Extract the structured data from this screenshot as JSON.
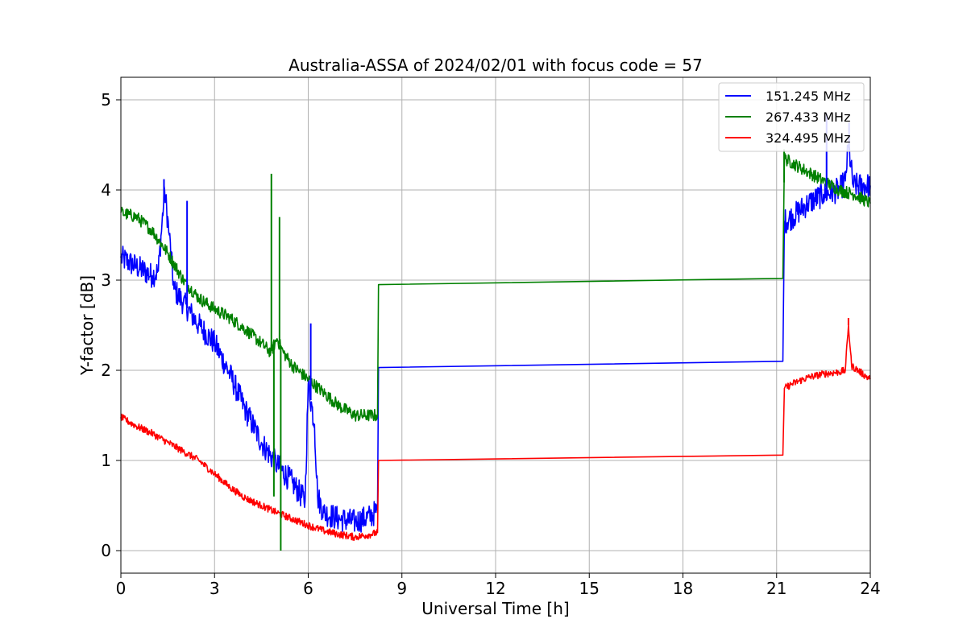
{
  "chart_data": {
    "type": "line",
    "title": "Australia-ASSA of 2024/02/01 with focus code = 57",
    "xlabel": "Universal Time [h]",
    "ylabel": "Y-factor [dB]",
    "xlim": [
      0,
      24
    ],
    "ylim": [
      -0.25,
      5.25
    ],
    "xticks": [
      0,
      3,
      6,
      9,
      12,
      15,
      18,
      21,
      24
    ],
    "yticks": [
      0,
      1,
      2,
      3,
      4,
      5
    ],
    "grid": true,
    "legend_position": "top-right",
    "series": [
      {
        "name": "151.245 MHz",
        "color": "#0000ff",
        "noise": 0.14,
        "points": [
          [
            0,
            3.25
          ],
          [
            0.5,
            3.15
          ],
          [
            1.0,
            3.05
          ],
          [
            1.2,
            3.1
          ],
          [
            1.4,
            4.0
          ],
          [
            1.55,
            3.5
          ],
          [
            1.7,
            2.9
          ],
          [
            2.0,
            2.75
          ],
          [
            2.5,
            2.5
          ],
          [
            3.0,
            2.3
          ],
          [
            3.5,
            1.95
          ],
          [
            4.0,
            1.55
          ],
          [
            4.5,
            1.2
          ],
          [
            5.0,
            0.95
          ],
          [
            5.5,
            0.75
          ],
          [
            5.9,
            0.55
          ],
          [
            6.0,
            1.85
          ],
          [
            6.2,
            1.4
          ],
          [
            6.3,
            0.6
          ],
          [
            6.5,
            0.42
          ],
          [
            7.0,
            0.35
          ],
          [
            7.5,
            0.32
          ],
          [
            8.0,
            0.38
          ],
          [
            8.22,
            0.45
          ],
          [
            8.25,
            2.03
          ],
          [
            21.2,
            2.1
          ],
          [
            21.25,
            3.65
          ],
          [
            21.5,
            3.7
          ],
          [
            22.0,
            3.85
          ],
          [
            22.5,
            3.95
          ],
          [
            23.0,
            4.0
          ],
          [
            23.2,
            4.1
          ],
          [
            23.3,
            4.5
          ],
          [
            23.45,
            4.05
          ],
          [
            24.0,
            4.05
          ]
        ]
      },
      {
        "name": "267.433 MHz",
        "color": "#008000",
        "noise": 0.07,
        "points": [
          [
            0,
            3.75
          ],
          [
            0.5,
            3.7
          ],
          [
            1.0,
            3.55
          ],
          [
            1.5,
            3.3
          ],
          [
            2.0,
            3.0
          ],
          [
            2.5,
            2.8
          ],
          [
            3.0,
            2.68
          ],
          [
            3.5,
            2.58
          ],
          [
            4.0,
            2.45
          ],
          [
            4.5,
            2.3
          ],
          [
            4.8,
            2.2
          ],
          [
            5.0,
            2.35
          ],
          [
            5.2,
            2.2
          ],
          [
            5.5,
            2.05
          ],
          [
            6.0,
            1.9
          ],
          [
            6.5,
            1.75
          ],
          [
            7.0,
            1.6
          ],
          [
            7.5,
            1.5
          ],
          [
            8.0,
            1.5
          ],
          [
            8.22,
            1.5
          ],
          [
            8.25,
            2.95
          ],
          [
            21.2,
            3.02
          ],
          [
            21.25,
            4.35
          ],
          [
            21.5,
            4.3
          ],
          [
            22.0,
            4.2
          ],
          [
            22.5,
            4.1
          ],
          [
            23.0,
            4.0
          ],
          [
            23.5,
            3.95
          ],
          [
            24.0,
            3.85
          ]
        ]
      },
      {
        "name": "324.495 MHz",
        "color": "#ff0000",
        "noise": 0.04,
        "points": [
          [
            0,
            1.48
          ],
          [
            0.5,
            1.38
          ],
          [
            1.0,
            1.3
          ],
          [
            1.5,
            1.2
          ],
          [
            2.0,
            1.1
          ],
          [
            2.5,
            1.0
          ],
          [
            3.0,
            0.85
          ],
          [
            3.5,
            0.7
          ],
          [
            4.0,
            0.58
          ],
          [
            4.5,
            0.5
          ],
          [
            5.0,
            0.42
          ],
          [
            5.5,
            0.35
          ],
          [
            6.0,
            0.28
          ],
          [
            6.5,
            0.22
          ],
          [
            7.0,
            0.18
          ],
          [
            7.5,
            0.15
          ],
          [
            8.0,
            0.18
          ],
          [
            8.22,
            0.2
          ],
          [
            8.25,
            1.0
          ],
          [
            21.2,
            1.06
          ],
          [
            21.25,
            1.8
          ],
          [
            21.5,
            1.85
          ],
          [
            22.0,
            1.92
          ],
          [
            22.5,
            1.96
          ],
          [
            23.0,
            1.98
          ],
          [
            23.2,
            2.0
          ],
          [
            23.3,
            2.5
          ],
          [
            23.4,
            2.05
          ],
          [
            24.0,
            1.9
          ]
        ]
      }
    ],
    "spikes": [
      {
        "series": 0,
        "x": 1.38,
        "y": 4.12
      },
      {
        "series": 0,
        "x": 2.12,
        "y": 3.88
      },
      {
        "series": 0,
        "x": 6.08,
        "y": 2.52
      },
      {
        "series": 0,
        "x": 22.6,
        "y": 4.85
      },
      {
        "series": 0,
        "x": 23.32,
        "y": 4.75
      },
      {
        "series": 1,
        "x": 4.82,
        "y": 4.18
      },
      {
        "series": 1,
        "x": 5.08,
        "y": 3.7
      },
      {
        "series": 1,
        "x": 5.12,
        "y": 0.0
      },
      {
        "series": 1,
        "x": 4.9,
        "y": 0.6
      },
      {
        "series": 1,
        "x": 21.24,
        "y": 4.45
      },
      {
        "series": 2,
        "x": 23.3,
        "y": 2.58
      }
    ]
  }
}
